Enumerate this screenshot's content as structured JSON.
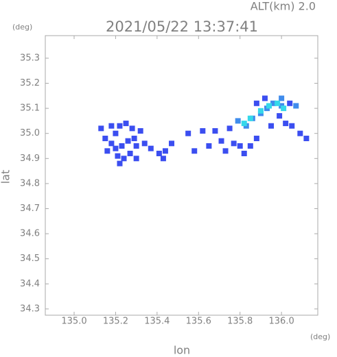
{
  "chart_data": {
    "type": "scatter",
    "title": "2021/05/22 13:37:41",
    "subtitle": "ALT(km)  2.0",
    "y_unit": "(deg)",
    "x_unit": "(deg)",
    "xlabel": "lon",
    "ylabel": "lat",
    "xlim": [
      134.861,
      136.175
    ],
    "ylim": [
      34.275,
      35.39
    ],
    "xticks": [
      {
        "value": 135,
        "label": "135.0"
      },
      135.2,
      135.4,
      135.6,
      135.8,
      {
        "value": 136,
        "label": "136.0"
      }
    ],
    "yticks": [
      34.3,
      34.4,
      34.5,
      34.6,
      34.7,
      34.8,
      34.9,
      {
        "value": 35,
        "label": "35.0"
      },
      35.1,
      35.2,
      35.3
    ],
    "x": [
      135.13,
      135.15,
      135.18,
      135.2,
      135.22,
      135.25,
      135.28,
      135.18,
      135.16,
      135.2,
      135.23,
      135.26,
      135.29,
      135.3,
      135.27,
      135.24,
      135.21,
      135.32,
      135.34,
      135.22,
      135.3,
      135.37,
      135.41,
      135.44,
      135.43,
      135.47,
      135.55,
      135.62,
      135.58,
      135.65,
      135.68,
      135.71,
      135.73,
      135.75,
      135.77,
      135.8,
      135.82,
      135.85,
      135.88,
      135.79,
      135.83,
      135.86,
      135.9,
      135.93,
      135.96,
      136.0,
      136.04,
      136.07,
      135.99,
      136.02,
      136.05,
      136.09,
      136.12,
      135.95,
      135.88,
      135.92,
      136.0,
      135.85,
      135.9,
      135.94,
      135.98,
      136.01,
      135.82
    ],
    "values": [
      35.02,
      34.98,
      35.03,
      35.0,
      35.03,
      35.04,
      35.02,
      34.96,
      34.93,
      34.94,
      34.95,
      34.97,
      34.98,
      34.95,
      34.92,
      34.9,
      34.91,
      35.01,
      34.96,
      34.88,
      34.9,
      34.94,
      34.92,
      34.93,
      34.9,
      34.96,
      35.0,
      35.01,
      34.93,
      34.95,
      35.01,
      34.97,
      34.93,
      35.02,
      34.96,
      34.95,
      34.92,
      34.95,
      34.98,
      35.05,
      35.03,
      35.06,
      35.08,
      35.1,
      35.12,
      35.11,
      35.12,
      35.11,
      35.07,
      35.04,
      35.03,
      35.0,
      34.98,
      35.03,
      35.12,
      35.14,
      35.14,
      35.06,
      35.09,
      35.11,
      35.12,
      35.1,
      35.04
    ],
    "colors": [
      "#3b4ef0",
      "#3b4ef0",
      "#3b4ef0",
      "#3b4ef0",
      "#3b4ef0",
      "#3b4ef0",
      "#3b4ef0",
      "#3b4ef0",
      "#3b4ef0",
      "#3b4ef0",
      "#3b4ef0",
      "#3b4ef0",
      "#3b4ef0",
      "#3b4ef0",
      "#3b4ef0",
      "#3b4ef0",
      "#3b4ef0",
      "#3b4ef0",
      "#3b4ef0",
      "#3b4ef0",
      "#3b4ef0",
      "#3b4ef0",
      "#3b4ef0",
      "#3b4ef0",
      "#3b4ef0",
      "#3b4ef0",
      "#3b4ef0",
      "#3b4ef0",
      "#3b4ef0",
      "#3b4ef0",
      "#3b4ef0",
      "#3b4ef0",
      "#3b4ef0",
      "#3b4ef0",
      "#3b4ef0",
      "#3b4ef0",
      "#3b4ef0",
      "#3b4ef0",
      "#3b4ef0",
      "#3f8cec",
      "#3f8cec",
      "#3f8cec",
      "#3f8cec",
      "#3f8cec",
      "#3f8cec",
      "#3f8cec",
      "#3b4ef0",
      "#3f8cec",
      "#3b4ef0",
      "#3b4ef0",
      "#3b4ef0",
      "#3b4ef0",
      "#3b4ef0",
      "#3b4ef0",
      "#3b4ef0",
      "#3b4ef0",
      "#3f8cec",
      "#35d8ea",
      "#35d8ea",
      "#35d8ea",
      "#35d8ea",
      "#35d8ea",
      "#35d8ea"
    ]
  }
}
